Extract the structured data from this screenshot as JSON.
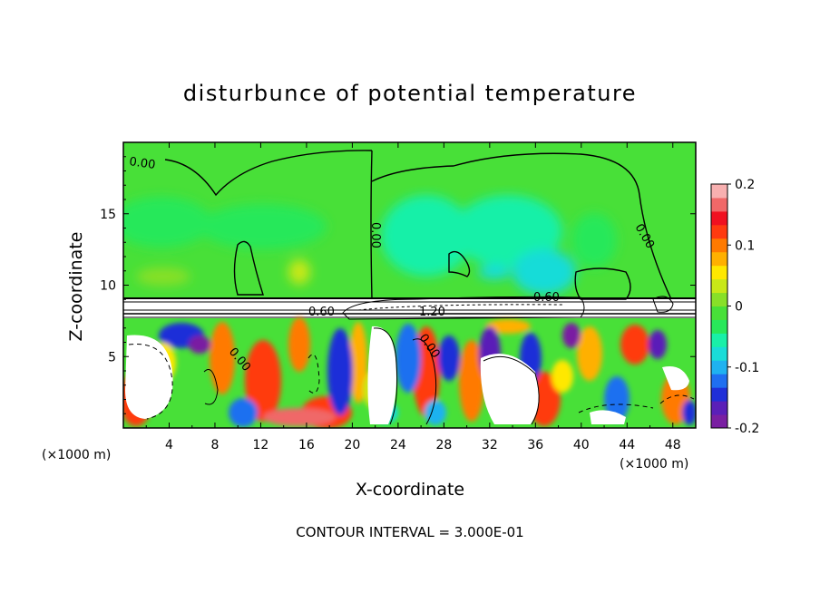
{
  "chart_data": {
    "type": "heatmap",
    "title": "disturbunce of potential temperature",
    "xlabel": "X-coordinate",
    "ylabel": "Z-coordinate",
    "x_unit_left": "(×1000 m)",
    "x_unit_right": "(×1000 m)",
    "xlim": [
      0,
      50
    ],
    "ylim": [
      0,
      20
    ],
    "x_ticks": [
      4,
      8,
      12,
      16,
      20,
      24,
      28,
      32,
      36,
      40,
      44,
      48
    ],
    "y_ticks": [
      5,
      10,
      15
    ],
    "colorbar": {
      "min": -0.2,
      "max": 0.2,
      "ticks": [
        -0.2,
        -0.1,
        0,
        0.1,
        0.2
      ],
      "tick_labels": [
        "-0.2",
        "-0.1",
        "0",
        "0.1",
        "0.2"
      ],
      "colors": [
        "#7a1fa2",
        "#5a1fb8",
        "#1f2fd8",
        "#1f6ff0",
        "#1fb2f0",
        "#19dcd8",
        "#19f0a8",
        "#28e85a",
        "#48e038",
        "#88e028",
        "#c8e818",
        "#ffe800",
        "#ffb000",
        "#ff7a00",
        "#ff3a10",
        "#f01020",
        "#f06868",
        "#f8b0b0"
      ]
    },
    "contour_labels": [
      "0.00",
      "0.00",
      "0.00",
      "0.00",
      "0.00",
      "0.60",
      "0.60",
      "1.20"
    ],
    "footer": "CONTOUR INTERVAL = 3.000E-01"
  }
}
